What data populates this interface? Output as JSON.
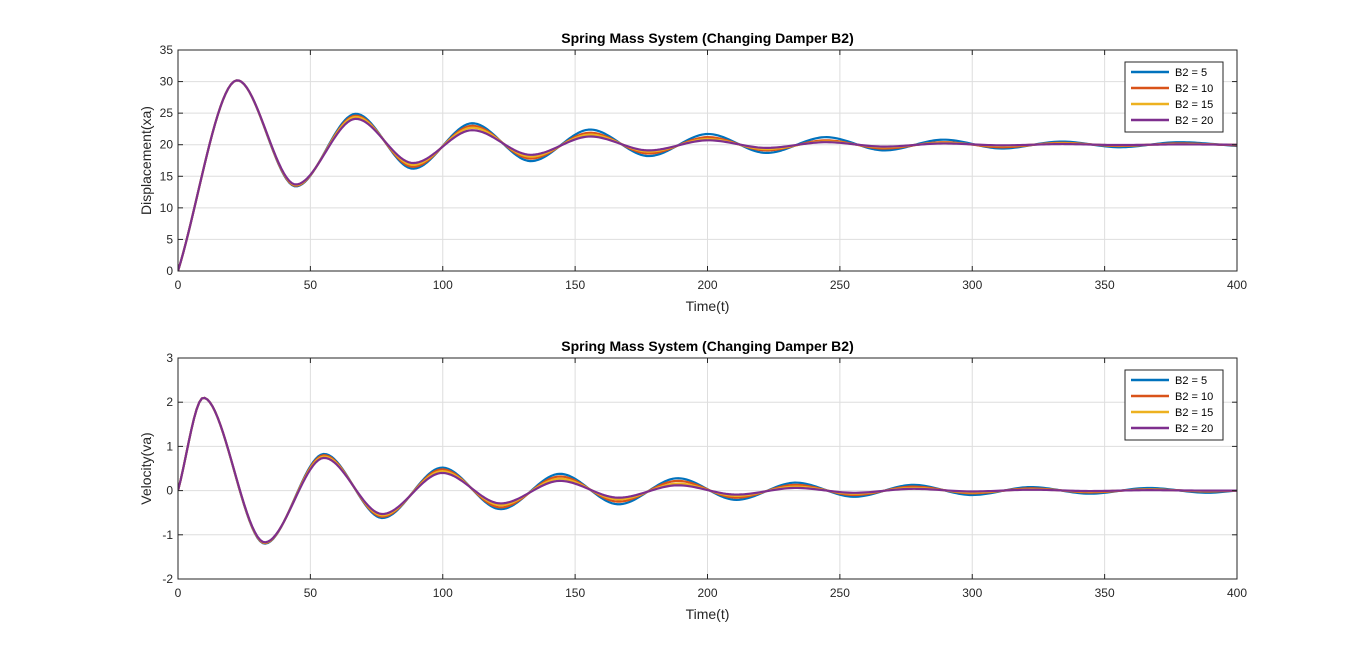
{
  "colors": {
    "background": "#ffffff",
    "axes": "#262626",
    "grid": "#dedede",
    "series": [
      "#0072BD",
      "#D95319",
      "#EDB120",
      "#7E2F8E"
    ]
  },
  "chart_data": [
    {
      "type": "line",
      "title": "Spring Mass System (Changing Damper B2)",
      "xlabel": "Time(t)",
      "ylabel": "Displacement(xa)",
      "xlim": [
        0,
        400
      ],
      "ylim": [
        0,
        35
      ],
      "xticks": [
        0,
        50,
        100,
        150,
        200,
        250,
        300,
        350,
        400
      ],
      "yticks": [
        0,
        5,
        10,
        15,
        20,
        25,
        30,
        35
      ],
      "grid": true,
      "legend_position": "top-right",
      "series": [
        {
          "name": "B2 = 5",
          "x": [
            0,
            22.4,
            44.5,
            67.2,
            88.8,
            111.2,
            133.3,
            155.7,
            177.8,
            200.2,
            222.3,
            244.7,
            266.8,
            289.2,
            311.3,
            333.7,
            355.8,
            378.2,
            400
          ],
          "y": [
            0,
            30.2,
            13.4,
            24.9,
            16.2,
            23.4,
            17.4,
            22.4,
            18.2,
            21.7,
            18.7,
            21.2,
            19.1,
            20.8,
            19.4,
            20.5,
            19.6,
            20.4,
            19.8
          ]
        },
        {
          "name": "B2 = 10",
          "x": [
            0,
            22.4,
            44.5,
            67.2,
            88.8,
            111.2,
            133.3,
            155.7,
            177.8,
            200.2,
            222.3,
            244.7,
            266.8,
            289.2,
            311.3,
            333.7,
            355.8,
            378.2,
            400
          ],
          "y": [
            0,
            30.2,
            13.5,
            24.6,
            16.5,
            23.0,
            17.8,
            21.9,
            18.6,
            21.2,
            19.1,
            20.7,
            19.4,
            20.4,
            19.6,
            20.3,
            19.8,
            20.2,
            19.9
          ]
        },
        {
          "name": "B2 = 15",
          "x": [
            0,
            22.4,
            44.5,
            67.2,
            88.8,
            111.2,
            133.3,
            155.7,
            177.8,
            200.2,
            222.3,
            244.7,
            266.8,
            289.2,
            311.3,
            333.7,
            355.8,
            378.2,
            400
          ],
          "y": [
            0,
            30.2,
            13.6,
            24.4,
            16.8,
            22.7,
            18.1,
            21.6,
            18.9,
            20.9,
            19.3,
            20.5,
            19.6,
            20.3,
            19.8,
            20.2,
            19.9,
            20.1,
            20.0
          ]
        },
        {
          "name": "B2 = 20",
          "x": [
            0,
            22.4,
            44.5,
            67.2,
            88.8,
            111.2,
            133.3,
            155.7,
            177.8,
            200.2,
            222.3,
            244.7,
            266.8,
            289.2,
            311.3,
            333.7,
            355.8,
            378.2,
            400
          ],
          "y": [
            0,
            30.2,
            13.7,
            24.1,
            17.1,
            22.3,
            18.4,
            21.3,
            19.1,
            20.7,
            19.5,
            20.4,
            19.7,
            20.2,
            19.9,
            20.1,
            19.95,
            20.05,
            20.0
          ]
        }
      ]
    },
    {
      "type": "line",
      "title": "Spring Mass System (Changing Damper B2)",
      "xlabel": "Time(t)",
      "ylabel": "Velocity(va)",
      "xlim": [
        0,
        400
      ],
      "ylim": [
        -2,
        3
      ],
      "xticks": [
        0,
        50,
        100,
        150,
        200,
        250,
        300,
        350,
        400
      ],
      "yticks": [
        -2,
        -1,
        0,
        1,
        2,
        3
      ],
      "grid": true,
      "legend_position": "top-right",
      "series": [
        {
          "name": "B2 = 5",
          "x": [
            0,
            9.6,
            32.8,
            55.2,
            77.2,
            99.8,
            121.9,
            144.3,
            166.4,
            188.8,
            210.9,
            233.3,
            255.4,
            277.8,
            299.9,
            322.3,
            344.4,
            366.8,
            388.9,
            400
          ],
          "y": [
            0,
            2.1,
            -1.2,
            0.83,
            -0.62,
            0.52,
            -0.42,
            0.38,
            -0.31,
            0.28,
            -0.21,
            0.18,
            -0.14,
            0.13,
            -0.1,
            0.08,
            -0.07,
            0.06,
            -0.05,
            0
          ]
        },
        {
          "name": "B2 = 10",
          "x": [
            0,
            9.6,
            32.8,
            55.2,
            77.2,
            99.8,
            121.9,
            144.3,
            166.4,
            188.8,
            210.9,
            233.3,
            255.4,
            277.8,
            299.9,
            322.3,
            344.4,
            366.8,
            388.9,
            400
          ],
          "y": [
            0,
            2.1,
            -1.19,
            0.8,
            -0.59,
            0.48,
            -0.38,
            0.32,
            -0.25,
            0.22,
            -0.16,
            0.13,
            -0.1,
            0.09,
            -0.06,
            0.05,
            -0.04,
            0.03,
            -0.02,
            0
          ]
        },
        {
          "name": "B2 = 15",
          "x": [
            0,
            9.6,
            32.8,
            55.2,
            77.2,
            99.8,
            121.9,
            144.3,
            166.4,
            188.8,
            210.9,
            233.3,
            255.4,
            277.8,
            299.9,
            322.3,
            344.4,
            366.8,
            388.9,
            400
          ],
          "y": [
            0,
            2.1,
            -1.18,
            0.77,
            -0.56,
            0.44,
            -0.33,
            0.27,
            -0.2,
            0.16,
            -0.12,
            0.09,
            -0.07,
            0.06,
            -0.04,
            0.03,
            -0.02,
            0.02,
            -0.01,
            0
          ]
        },
        {
          "name": "B2 = 20",
          "x": [
            0,
            9.6,
            32.8,
            55.2,
            77.2,
            99.8,
            121.9,
            144.3,
            166.4,
            188.8,
            210.9,
            233.3,
            255.4,
            277.8,
            299.9,
            322.3,
            344.4,
            366.8,
            388.9,
            400
          ],
          "y": [
            0,
            2.1,
            -1.17,
            0.74,
            -0.53,
            0.4,
            -0.29,
            0.22,
            -0.16,
            0.12,
            -0.09,
            0.06,
            -0.05,
            0.04,
            -0.02,
            0.02,
            -0.01,
            0.01,
            0,
            0
          ]
        }
      ]
    }
  ]
}
